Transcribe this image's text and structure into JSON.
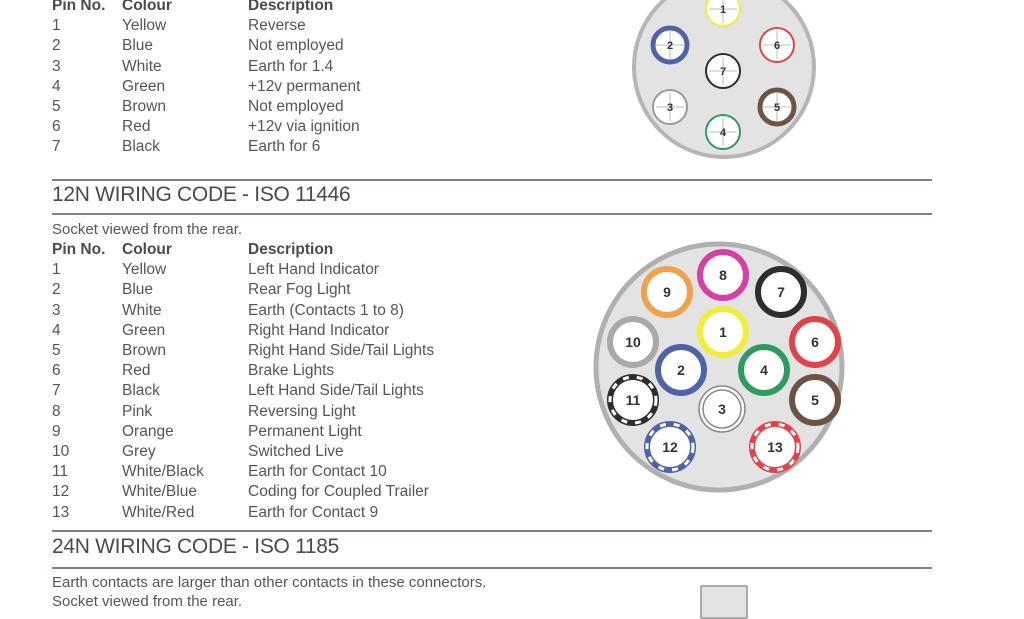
{
  "table7": {
    "headers": [
      "Pin No.",
      "Colour",
      "Description"
    ],
    "rows": [
      [
        "1",
        "Yellow",
        "Reverse"
      ],
      [
        "2",
        "Blue",
        "Not employed"
      ],
      [
        "3",
        "White",
        "Earth for 1.4"
      ],
      [
        "4",
        "Green",
        "+12v permanent"
      ],
      [
        "5",
        "Brown",
        "Not employed"
      ],
      [
        "6",
        "Red",
        "+12v via ignition"
      ],
      [
        "7",
        "Black",
        "Earth for 6"
      ]
    ]
  },
  "section12n": {
    "title": "12N WIRING CODE - ISO 11446",
    "note": "Socket viewed from the rear.",
    "headers": [
      "Pin No.",
      "Colour",
      "Description"
    ],
    "rows": [
      [
        "1",
        "Yellow",
        "Left Hand Indicator"
      ],
      [
        "2",
        "Blue",
        "Rear Fog Light"
      ],
      [
        "3",
        "White",
        "Earth (Contacts 1 to 8)"
      ],
      [
        "4",
        "Green",
        "Right Hand Indicator"
      ],
      [
        "5",
        "Brown",
        "Right Hand Side/Tail Lights"
      ],
      [
        "6",
        "Red",
        "Brake Lights"
      ],
      [
        "7",
        "Black",
        "Left Hand Side/Tail Lights"
      ],
      [
        "8",
        "Pink",
        "Reversing Light"
      ],
      [
        "9",
        "Orange",
        "Permanent Light"
      ],
      [
        "10",
        "Grey",
        "Switched Live"
      ],
      [
        "11",
        "White/Black",
        "Earth for Contact 10"
      ],
      [
        "12",
        "White/Blue",
        " Coding for Coupled Trailer"
      ],
      [
        "13",
        "White/Red",
        " Earth for Contact 9"
      ]
    ]
  },
  "section24n": {
    "title": "24N WIRING CODE - ISO 1185",
    "note": "Earth contacts are larger than other contacts in these connectors.",
    "note2": "Socket viewed from the rear."
  },
  "colors": {
    "rule": "#8c7a8c",
    "socket_fill": "#e3e3e3",
    "yellow": "#f2ec3a",
    "blue": "#4e63a8",
    "white": "#ffffff",
    "green": "#2f9a5e",
    "brown": "#6b5443",
    "red": "#e0444a",
    "black": "#2d2d2d",
    "pink": "#d63fa4",
    "orange": "#f0a24a",
    "grey": "#a9a9a9"
  }
}
